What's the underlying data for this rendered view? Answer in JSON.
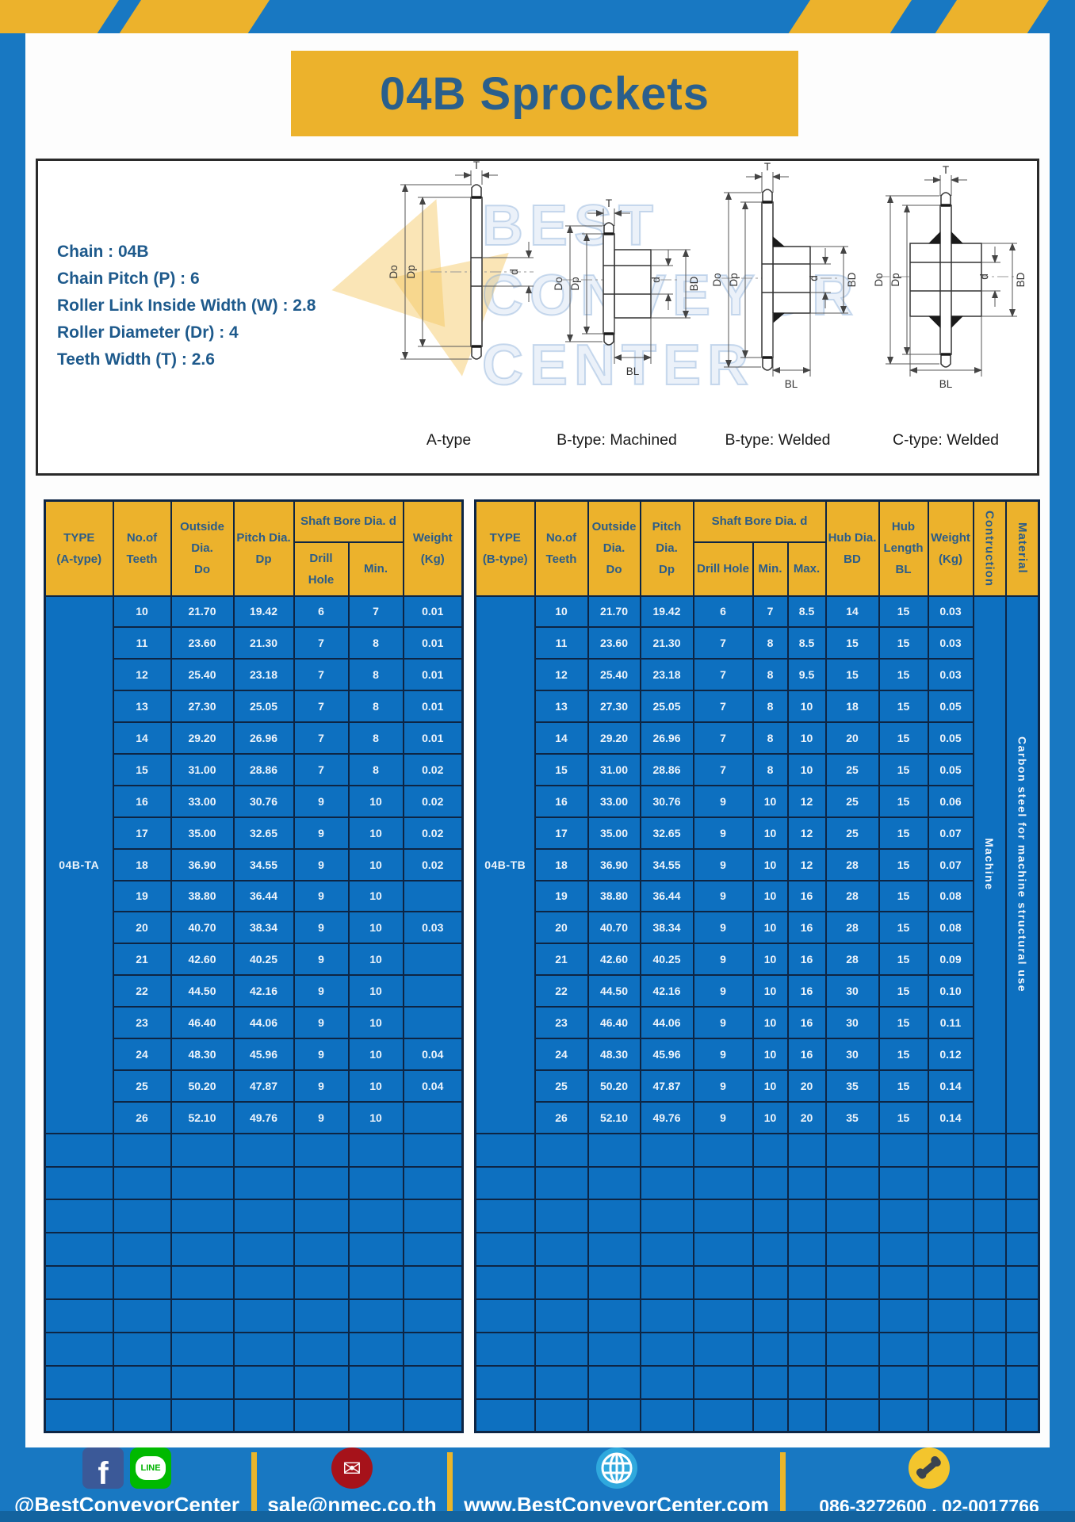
{
  "title": "04B Sprockets",
  "colors": {
    "frame_blue": "#1878c2",
    "cell_blue": "#0d70c0",
    "accent_yellow": "#ecb22c",
    "header_text_blue": "#2b5c88",
    "border_navy": "#0d2544",
    "footer_strip_blue": "#13639f"
  },
  "specs": [
    "Chain : 04B",
    "Chain Pitch (P) : 6",
    "Roller Link Inside Width (W) : 2.8",
    "Roller Diameter (Dr) : 4",
    "Teeth Width (T) : 2.6"
  ],
  "diagram": {
    "captions": [
      "A-type",
      "B-type: Machined",
      "B-type: Welded",
      "C-type: Welded"
    ],
    "dims": {
      "T": "T",
      "Do": "Do",
      "Dp": "Dp",
      "d": "d",
      "BD": "BD",
      "BL": "BL"
    },
    "watermark": {
      "line1": "BEST",
      "line2": "CONVEYOR",
      "line3": "CENTER"
    }
  },
  "tables": {
    "left": {
      "headers": {
        "type": "TYPE\n(A-type)",
        "teeth": "No.of\nTeeth",
        "outside": "Outside\nDia.\nDo",
        "pitch": "Pitch Dia.\nDp",
        "shaft": "Shaft Bore Dia. d",
        "drill": "Drill Hole",
        "min": "Min.",
        "weight": "Weight\n(Kg)"
      },
      "type_label": "04B-TA",
      "rows": [
        [
          "10",
          "21.70",
          "19.42",
          "6",
          "7",
          "0.01"
        ],
        [
          "11",
          "23.60",
          "21.30",
          "7",
          "8",
          "0.01"
        ],
        [
          "12",
          "25.40",
          "23.18",
          "7",
          "8",
          "0.01"
        ],
        [
          "13",
          "27.30",
          "25.05",
          "7",
          "8",
          "0.01"
        ],
        [
          "14",
          "29.20",
          "26.96",
          "7",
          "8",
          "0.01"
        ],
        [
          "15",
          "31.00",
          "28.86",
          "7",
          "8",
          "0.02"
        ],
        [
          "16",
          "33.00",
          "30.76",
          "9",
          "10",
          "0.02"
        ],
        [
          "17",
          "35.00",
          "32.65",
          "9",
          "10",
          "0.02"
        ],
        [
          "18",
          "36.90",
          "34.55",
          "9",
          "10",
          "0.02"
        ],
        [
          "19",
          "38.80",
          "36.44",
          "9",
          "10",
          ""
        ],
        [
          "20",
          "40.70",
          "38.34",
          "9",
          "10",
          "0.03"
        ],
        [
          "21",
          "42.60",
          "40.25",
          "9",
          "10",
          ""
        ],
        [
          "22",
          "44.50",
          "42.16",
          "9",
          "10",
          ""
        ],
        [
          "23",
          "46.40",
          "44.06",
          "9",
          "10",
          ""
        ],
        [
          "24",
          "48.30",
          "45.96",
          "9",
          "10",
          "0.04"
        ],
        [
          "25",
          "50.20",
          "47.87",
          "9",
          "10",
          "0.04"
        ],
        [
          "26",
          "52.10",
          "49.76",
          "9",
          "10",
          ""
        ]
      ],
      "empty_rows": 9
    },
    "right": {
      "headers": {
        "type": "TYPE\n(B-type)",
        "teeth": "No.of\nTeeth",
        "outside": "Outside\nDia.\nDo",
        "pitch": "Pitch Dia.\nDp",
        "shaft": "Shaft Bore Dia. d",
        "drill": "Drill Hole",
        "min": "Min.",
        "max": "Max.",
        "hub_dia": "Hub Dia.\nBD",
        "hub_len": "Hub\nLength\nBL",
        "weight": "Weight\n(Kg)",
        "construction": "Contruction",
        "material": "Material"
      },
      "type_label": "04B-TB",
      "construction_value": "Machine",
      "material_value": "Carbon steel for machine structural use",
      "rows": [
        [
          "10",
          "21.70",
          "19.42",
          "6",
          "7",
          "8.5",
          "14",
          "15",
          "0.03"
        ],
        [
          "11",
          "23.60",
          "21.30",
          "7",
          "8",
          "8.5",
          "15",
          "15",
          "0.03"
        ],
        [
          "12",
          "25.40",
          "23.18",
          "7",
          "8",
          "9.5",
          "15",
          "15",
          "0.03"
        ],
        [
          "13",
          "27.30",
          "25.05",
          "7",
          "8",
          "10",
          "18",
          "15",
          "0.05"
        ],
        [
          "14",
          "29.20",
          "26.96",
          "7",
          "8",
          "10",
          "20",
          "15",
          "0.05"
        ],
        [
          "15",
          "31.00",
          "28.86",
          "7",
          "8",
          "10",
          "25",
          "15",
          "0.05"
        ],
        [
          "16",
          "33.00",
          "30.76",
          "9",
          "10",
          "12",
          "25",
          "15",
          "0.06"
        ],
        [
          "17",
          "35.00",
          "32.65",
          "9",
          "10",
          "12",
          "25",
          "15",
          "0.07"
        ],
        [
          "18",
          "36.90",
          "34.55",
          "9",
          "10",
          "12",
          "28",
          "15",
          "0.07"
        ],
        [
          "19",
          "38.80",
          "36.44",
          "9",
          "10",
          "16",
          "28",
          "15",
          "0.08"
        ],
        [
          "20",
          "40.70",
          "38.34",
          "9",
          "10",
          "16",
          "28",
          "15",
          "0.08"
        ],
        [
          "21",
          "42.60",
          "40.25",
          "9",
          "10",
          "16",
          "28",
          "15",
          "0.09"
        ],
        [
          "22",
          "44.50",
          "42.16",
          "9",
          "10",
          "16",
          "30",
          "15",
          "0.10"
        ],
        [
          "23",
          "46.40",
          "44.06",
          "9",
          "10",
          "16",
          "30",
          "15",
          "0.11"
        ],
        [
          "24",
          "48.30",
          "45.96",
          "9",
          "10",
          "16",
          "30",
          "15",
          "0.12"
        ],
        [
          "25",
          "50.20",
          "47.87",
          "9",
          "10",
          "20",
          "35",
          "15",
          "0.14"
        ],
        [
          "26",
          "52.10",
          "49.76",
          "9",
          "10",
          "20",
          "35",
          "15",
          "0.14"
        ]
      ],
      "empty_rows": 9
    }
  },
  "footer": {
    "facebook_letter": "f",
    "line_label": "LINE",
    "social_handle": "@BestConveyorCenter",
    "email": "sale@nmec.co.th",
    "website": "www.BestConveyorCenter.com",
    "phones": "086-3272600 , 02-0017766"
  }
}
